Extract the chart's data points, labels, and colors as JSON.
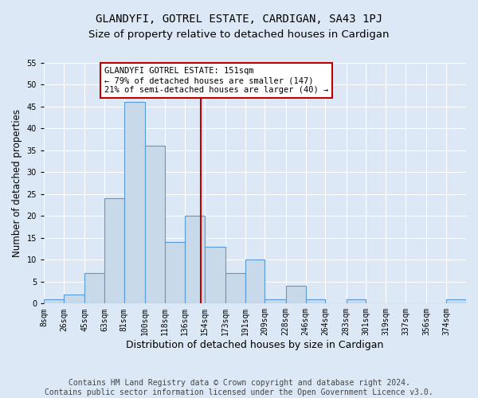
{
  "title": "GLANDYFI, GOTREL ESTATE, CARDIGAN, SA43 1PJ",
  "subtitle": "Size of property relative to detached houses in Cardigan",
  "xlabel": "Distribution of detached houses by size in Cardigan",
  "ylabel": "Number of detached properties",
  "bins": [
    8,
    26,
    45,
    63,
    81,
    100,
    118,
    136,
    154,
    173,
    191,
    209,
    228,
    246,
    264,
    283,
    301,
    319,
    337,
    356,
    374
  ],
  "counts": [
    1,
    2,
    7,
    24,
    46,
    36,
    14,
    20,
    13,
    7,
    10,
    1,
    4,
    1,
    0,
    1,
    0,
    0,
    0,
    0,
    1
  ],
  "bar_color": "#c8d9ea",
  "bar_edge_color": "#5b9bd5",
  "property_size": 151,
  "vline_color": "#c00000",
  "annotation_text": "GLANDYFI GOTREL ESTATE: 151sqm\n← 79% of detached houses are smaller (147)\n21% of semi-detached houses are larger (40) →",
  "annotation_box_color": "#c00000",
  "ylim": [
    0,
    55
  ],
  "yticks": [
    0,
    5,
    10,
    15,
    20,
    25,
    30,
    35,
    40,
    45,
    50,
    55
  ],
  "footer": "Contains HM Land Registry data © Crown copyright and database right 2024.\nContains public sector information licensed under the Open Government Licence v3.0.",
  "bg_color": "#dce8f5",
  "plot_bg_color": "#dce8f5",
  "grid_color": "#ffffff",
  "title_fontsize": 10,
  "subtitle_fontsize": 9.5,
  "tick_fontsize": 7,
  "footer_fontsize": 7,
  "ylabel_fontsize": 8.5,
  "xlabel_fontsize": 9
}
